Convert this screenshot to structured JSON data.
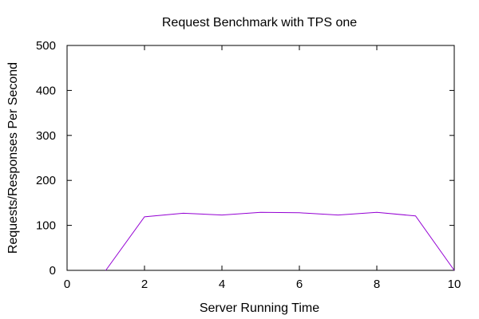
{
  "chart_data": {
    "type": "line",
    "title": "Request Benchmark with TPS one",
    "xlabel": "Server Running Time",
    "ylabel": "Requests/Responses Per Second",
    "xlim": [
      0,
      10
    ],
    "ylim": [
      0,
      500
    ],
    "xticks": [
      0,
      2,
      4,
      6,
      8,
      10
    ],
    "yticks": [
      0,
      100,
      200,
      300,
      400,
      500
    ],
    "grid": false,
    "series": [
      {
        "color": "#9400D3",
        "x": [
          1,
          2,
          3,
          4,
          5,
          6,
          7,
          8,
          9,
          10
        ],
        "y": [
          0,
          119,
          127,
          123,
          129,
          128,
          123,
          129,
          121,
          0
        ]
      }
    ]
  }
}
